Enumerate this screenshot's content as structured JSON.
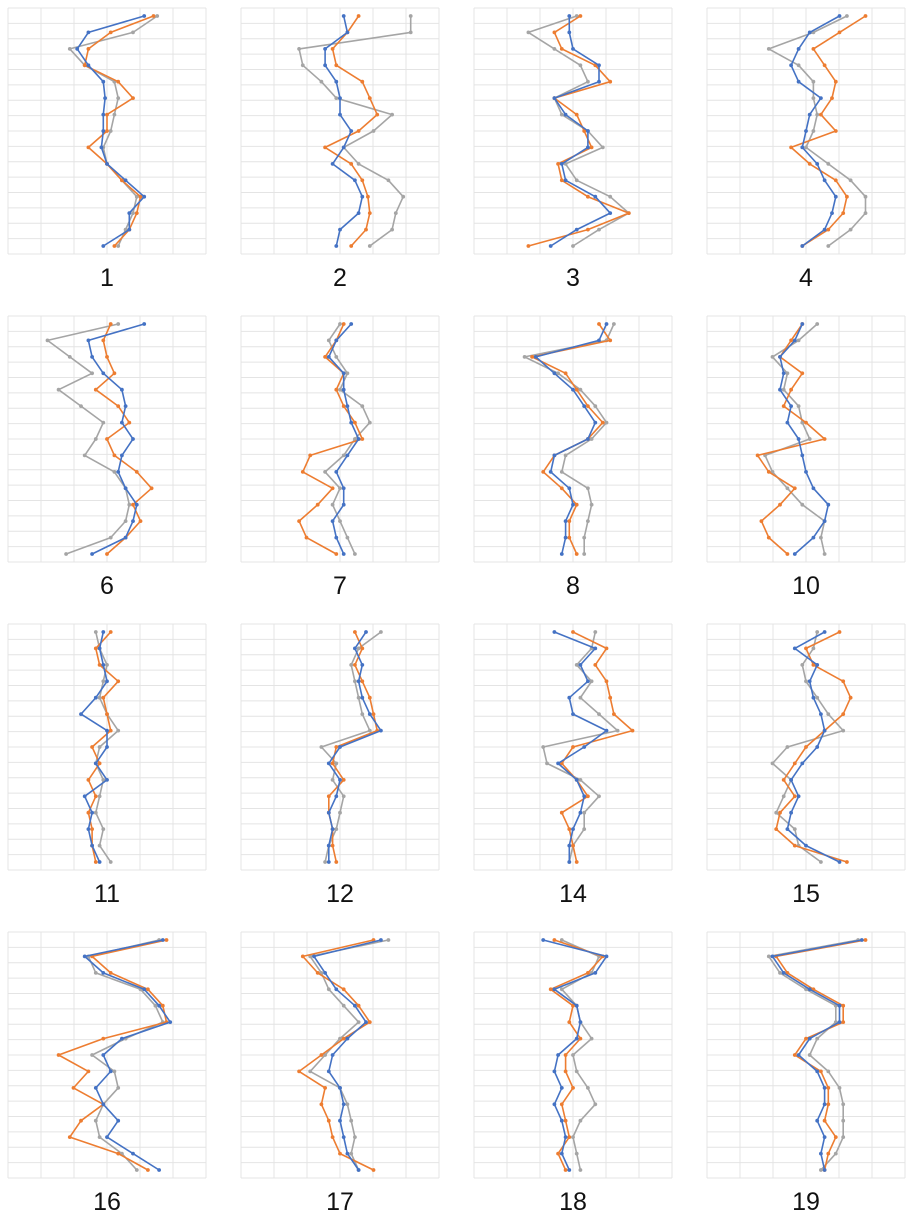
{
  "colors": {
    "blue": "#4472c4",
    "orange": "#ed7d31",
    "gray": "#a5a5a5",
    "grid": "#e4e4e4"
  },
  "chart_data": [
    {
      "type": "line",
      "label": "1",
      "grid": true,
      "x_ticks": 6,
      "y_ticks": 16,
      "series": [
        {
          "color": "blue",
          "x": [
            0.7,
            0.4,
            0.34,
            0.4,
            0.48,
            0.49,
            0.48,
            0.48,
            0.47,
            0.5,
            0.6,
            0.7,
            0.62,
            0.62,
            0.48
          ]
        },
        {
          "color": "orange",
          "x": [
            0.75,
            0.52,
            0.4,
            0.38,
            0.56,
            0.64,
            0.5,
            0.5,
            0.4,
            0.5,
            0.58,
            0.68,
            0.66,
            0.62,
            0.54
          ]
        },
        {
          "color": "gray",
          "x": [
            0.77,
            0.64,
            0.3,
            0.38,
            0.54,
            0.56,
            0.54,
            0.52,
            0.48,
            0.5,
            0.58,
            0.66,
            0.64,
            0.6,
            0.56
          ]
        }
      ]
    },
    {
      "type": "line",
      "label": "2",
      "grid": true,
      "x_ticks": 6,
      "y_ticks": 16,
      "series": [
        {
          "color": "blue",
          "x": [
            0.52,
            0.54,
            0.42,
            0.42,
            0.48,
            0.5,
            0.5,
            0.56,
            0.52,
            0.46,
            0.58,
            0.62,
            0.6,
            0.5,
            0.48
          ]
        },
        {
          "color": "orange",
          "x": [
            0.6,
            0.54,
            0.46,
            0.48,
            0.62,
            0.66,
            0.7,
            0.6,
            0.42,
            0.56,
            0.62,
            0.65,
            0.66,
            0.64,
            0.56
          ]
        },
        {
          "color": "gray",
          "x": [
            0.88,
            0.88,
            0.28,
            0.3,
            0.4,
            0.48,
            0.78,
            0.68,
            0.52,
            0.6,
            0.76,
            0.84,
            0.8,
            0.78,
            0.66
          ]
        }
      ]
    },
    {
      "type": "line",
      "label": "3",
      "grid": true,
      "x_ticks": 6,
      "y_ticks": 16,
      "series": [
        {
          "color": "blue",
          "x": [
            0.48,
            0.48,
            0.5,
            0.64,
            0.64,
            0.4,
            0.46,
            0.58,
            0.58,
            0.44,
            0.46,
            0.62,
            0.7,
            0.52,
            0.38
          ]
        },
        {
          "color": "orange",
          "x": [
            0.54,
            0.4,
            0.44,
            0.62,
            0.7,
            0.4,
            0.52,
            0.56,
            0.6,
            0.42,
            0.44,
            0.58,
            0.8,
            0.58,
            0.26
          ]
        },
        {
          "color": "gray",
          "x": [
            0.52,
            0.26,
            0.4,
            0.54,
            0.58,
            0.4,
            0.44,
            0.58,
            0.66,
            0.46,
            0.52,
            0.7,
            0.8,
            0.64,
            0.5
          ]
        }
      ]
    },
    {
      "type": "line",
      "label": "4",
      "grid": true,
      "x_ticks": 6,
      "y_ticks": 16,
      "series": [
        {
          "color": "blue",
          "x": [
            0.68,
            0.52,
            0.46,
            0.42,
            0.46,
            0.58,
            0.52,
            0.5,
            0.48,
            0.56,
            0.6,
            0.66,
            0.64,
            0.6,
            0.48
          ]
        },
        {
          "color": "orange",
          "x": [
            0.82,
            0.68,
            0.54,
            0.6,
            0.66,
            0.64,
            0.58,
            0.66,
            0.42,
            0.52,
            0.66,
            0.72,
            0.7,
            0.62,
            0.48
          ]
        },
        {
          "color": "gray",
          "x": [
            0.72,
            0.54,
            0.3,
            0.46,
            0.54,
            0.54,
            0.56,
            0.54,
            0.5,
            0.62,
            0.74,
            0.82,
            0.82,
            0.74,
            0.62
          ]
        }
      ]
    },
    {
      "type": "line",
      "label": "6",
      "grid": true,
      "x_ticks": 6,
      "y_ticks": 16,
      "series": [
        {
          "color": "blue",
          "x": [
            0.7,
            0.4,
            0.42,
            0.48,
            0.58,
            0.6,
            0.58,
            0.64,
            0.58,
            0.56,
            0.6,
            0.66,
            0.64,
            0.6,
            0.42
          ]
        },
        {
          "color": "orange",
          "x": [
            0.52,
            0.48,
            0.5,
            0.54,
            0.44,
            0.56,
            0.62,
            0.5,
            0.54,
            0.66,
            0.74,
            0.64,
            0.68,
            0.6,
            0.5
          ]
        },
        {
          "color": "gray",
          "x": [
            0.56,
            0.18,
            0.3,
            0.42,
            0.24,
            0.36,
            0.48,
            0.44,
            0.38,
            0.54,
            0.6,
            0.62,
            0.6,
            0.52,
            0.28
          ]
        }
      ]
    },
    {
      "type": "line",
      "label": "7",
      "grid": true,
      "x_ticks": 6,
      "y_ticks": 16,
      "series": [
        {
          "color": "blue",
          "x": [
            0.56,
            0.48,
            0.44,
            0.52,
            0.52,
            0.54,
            0.56,
            0.6,
            0.54,
            0.48,
            0.52,
            0.52,
            0.46,
            0.48,
            0.52
          ]
        },
        {
          "color": "orange",
          "x": [
            0.52,
            0.48,
            0.42,
            0.52,
            0.48,
            0.52,
            0.58,
            0.62,
            0.34,
            0.3,
            0.46,
            0.38,
            0.28,
            0.32,
            0.48
          ]
        },
        {
          "color": "gray",
          "x": [
            0.5,
            0.44,
            0.48,
            0.54,
            0.5,
            0.62,
            0.66,
            0.58,
            0.52,
            0.42,
            0.5,
            0.46,
            0.5,
            0.54,
            0.58
          ]
        }
      ]
    },
    {
      "type": "line",
      "label": "8",
      "grid": true,
      "x_ticks": 6,
      "y_ticks": 16,
      "series": [
        {
          "color": "blue",
          "x": [
            0.68,
            0.64,
            0.3,
            0.4,
            0.5,
            0.56,
            0.62,
            0.58,
            0.4,
            0.38,
            0.48,
            0.5,
            0.46,
            0.46,
            0.44
          ]
        },
        {
          "color": "orange",
          "x": [
            0.64,
            0.7,
            0.28,
            0.46,
            0.52,
            0.58,
            0.66,
            0.58,
            0.4,
            0.34,
            0.44,
            0.52,
            0.48,
            0.48,
            0.52
          ]
        },
        {
          "color": "gray",
          "x": [
            0.72,
            0.68,
            0.24,
            0.42,
            0.54,
            0.62,
            0.68,
            0.6,
            0.46,
            0.44,
            0.58,
            0.6,
            0.58,
            0.56,
            0.56
          ]
        }
      ]
    },
    {
      "type": "line",
      "label": "10",
      "grid": true,
      "x_ticks": 6,
      "y_ticks": 16,
      "series": [
        {
          "color": "blue",
          "x": [
            0.48,
            0.44,
            0.36,
            0.38,
            0.36,
            0.42,
            0.4,
            0.46,
            0.48,
            0.5,
            0.54,
            0.62,
            0.6,
            0.54,
            0.44
          ]
        },
        {
          "color": "orange",
          "x": [
            0.48,
            0.42,
            0.36,
            0.48,
            0.42,
            0.38,
            0.5,
            0.6,
            0.24,
            0.3,
            0.44,
            0.36,
            0.26,
            0.3,
            0.4
          ]
        },
        {
          "color": "gray",
          "x": [
            0.56,
            0.46,
            0.32,
            0.4,
            0.38,
            0.46,
            0.48,
            0.52,
            0.28,
            0.32,
            0.4,
            0.48,
            0.6,
            0.58,
            0.6
          ]
        }
      ]
    },
    {
      "type": "line",
      "label": "11",
      "grid": true,
      "x_ticks": 6,
      "y_ticks": 16,
      "series": [
        {
          "color": "blue",
          "x": [
            0.48,
            0.46,
            0.48,
            0.5,
            0.44,
            0.36,
            0.5,
            0.5,
            0.44,
            0.5,
            0.38,
            0.42,
            0.4,
            0.42,
            0.46
          ]
        },
        {
          "color": "orange",
          "x": [
            0.52,
            0.44,
            0.46,
            0.56,
            0.48,
            0.5,
            0.52,
            0.42,
            0.46,
            0.4,
            0.44,
            0.4,
            0.42,
            0.42,
            0.44
          ]
        },
        {
          "color": "gray",
          "x": [
            0.44,
            0.46,
            0.5,
            0.48,
            0.46,
            0.5,
            0.56,
            0.46,
            0.44,
            0.48,
            0.46,
            0.44,
            0.48,
            0.46,
            0.52
          ]
        }
      ]
    },
    {
      "type": "line",
      "label": "12",
      "grid": true,
      "x_ticks": 6,
      "y_ticks": 16,
      "series": [
        {
          "color": "blue",
          "x": [
            0.64,
            0.58,
            0.62,
            0.6,
            0.62,
            0.66,
            0.72,
            0.5,
            0.44,
            0.5,
            0.48,
            0.44,
            0.46,
            0.44,
            0.44
          ]
        },
        {
          "color": "orange",
          "x": [
            0.58,
            0.62,
            0.58,
            0.62,
            0.66,
            0.68,
            0.7,
            0.48,
            0.46,
            0.52,
            0.44,
            0.44,
            0.46,
            0.46,
            0.48
          ]
        },
        {
          "color": "gray",
          "x": [
            0.72,
            0.6,
            0.56,
            0.58,
            0.6,
            0.62,
            0.66,
            0.4,
            0.48,
            0.46,
            0.52,
            0.5,
            0.48,
            0.44,
            0.42
          ]
        }
      ]
    },
    {
      "type": "line",
      "label": "14",
      "grid": true,
      "x_ticks": 6,
      "y_ticks": 16,
      "series": [
        {
          "color": "blue",
          "x": [
            0.4,
            0.62,
            0.54,
            0.58,
            0.48,
            0.5,
            0.68,
            0.56,
            0.42,
            0.52,
            0.56,
            0.54,
            0.5,
            0.48,
            0.48
          ]
        },
        {
          "color": "orange",
          "x": [
            0.5,
            0.68,
            0.62,
            0.68,
            0.7,
            0.72,
            0.82,
            0.5,
            0.44,
            0.52,
            0.58,
            0.44,
            0.48,
            0.5,
            0.52
          ]
        },
        {
          "color": "gray",
          "x": [
            0.62,
            0.6,
            0.52,
            0.6,
            0.54,
            0.64,
            0.74,
            0.34,
            0.36,
            0.54,
            0.64,
            0.56,
            0.56,
            0.5,
            0.48
          ]
        }
      ]
    },
    {
      "type": "line",
      "label": "15",
      "grid": true,
      "x_ticks": 6,
      "y_ticks": 16,
      "series": [
        {
          "color": "blue",
          "x": [
            0.6,
            0.44,
            0.56,
            0.52,
            0.54,
            0.58,
            0.6,
            0.56,
            0.48,
            0.42,
            0.46,
            0.42,
            0.4,
            0.5,
            0.68
          ]
        },
        {
          "color": "orange",
          "x": [
            0.68,
            0.5,
            0.54,
            0.7,
            0.74,
            0.7,
            0.6,
            0.5,
            0.44,
            0.38,
            0.44,
            0.36,
            0.34,
            0.44,
            0.72
          ]
        },
        {
          "color": "gray",
          "x": [
            0.56,
            0.54,
            0.48,
            0.5,
            0.56,
            0.62,
            0.7,
            0.4,
            0.32,
            0.42,
            0.38,
            0.34,
            0.44,
            0.46,
            0.58
          ]
        }
      ]
    },
    {
      "type": "line",
      "label": "16",
      "grid": true,
      "x_ticks": 6,
      "y_ticks": 16,
      "series": [
        {
          "color": "blue",
          "x": [
            0.8,
            0.38,
            0.48,
            0.7,
            0.78,
            0.84,
            0.58,
            0.48,
            0.52,
            0.44,
            0.48,
            0.56,
            0.5,
            0.64,
            0.78
          ]
        },
        {
          "color": "orange",
          "x": [
            0.82,
            0.42,
            0.52,
            0.72,
            0.8,
            0.82,
            0.48,
            0.24,
            0.4,
            0.32,
            0.48,
            0.36,
            0.3,
            0.56,
            0.72
          ]
        },
        {
          "color": "gray",
          "x": [
            0.78,
            0.4,
            0.44,
            0.68,
            0.76,
            0.8,
            0.6,
            0.42,
            0.54,
            0.56,
            0.48,
            0.44,
            0.46,
            0.58,
            0.66
          ]
        }
      ]
    },
    {
      "type": "line",
      "label": "17",
      "grid": true,
      "x_ticks": 6,
      "y_ticks": 16,
      "series": [
        {
          "color": "blue",
          "x": [
            0.72,
            0.36,
            0.42,
            0.48,
            0.58,
            0.64,
            0.54,
            0.46,
            0.44,
            0.5,
            0.52,
            0.5,
            0.52,
            0.54,
            0.6
          ]
        },
        {
          "color": "orange",
          "x": [
            0.68,
            0.3,
            0.38,
            0.52,
            0.6,
            0.66,
            0.52,
            0.4,
            0.28,
            0.42,
            0.4,
            0.44,
            0.46,
            0.5,
            0.68
          ]
        },
        {
          "color": "gray",
          "x": [
            0.76,
            0.34,
            0.4,
            0.44,
            0.52,
            0.6,
            0.5,
            0.42,
            0.34,
            0.5,
            0.54,
            0.56,
            0.58,
            0.56,
            0.6
          ]
        }
      ]
    },
    {
      "type": "line",
      "label": "18",
      "grid": true,
      "x_ticks": 6,
      "y_ticks": 16,
      "series": [
        {
          "color": "blue",
          "x": [
            0.34,
            0.68,
            0.62,
            0.4,
            0.52,
            0.54,
            0.52,
            0.42,
            0.4,
            0.44,
            0.4,
            0.44,
            0.46,
            0.44,
            0.48
          ]
        },
        {
          "color": "orange",
          "x": [
            0.4,
            0.66,
            0.58,
            0.38,
            0.5,
            0.48,
            0.54,
            0.46,
            0.46,
            0.5,
            0.44,
            0.46,
            0.48,
            0.42,
            0.46
          ]
        },
        {
          "color": "gray",
          "x": [
            0.44,
            0.64,
            0.6,
            0.44,
            0.52,
            0.54,
            0.6,
            0.5,
            0.52,
            0.58,
            0.62,
            0.54,
            0.5,
            0.52,
            0.54
          ]
        }
      ]
    },
    {
      "type": "line",
      "label": "19",
      "grid": true,
      "x_ticks": 6,
      "y_ticks": 16,
      "series": [
        {
          "color": "blue",
          "x": [
            0.8,
            0.32,
            0.38,
            0.52,
            0.68,
            0.68,
            0.52,
            0.46,
            0.56,
            0.6,
            0.6,
            0.56,
            0.6,
            0.58,
            0.6
          ]
        },
        {
          "color": "orange",
          "x": [
            0.82,
            0.34,
            0.4,
            0.54,
            0.7,
            0.7,
            0.5,
            0.44,
            0.58,
            0.62,
            0.62,
            0.6,
            0.66,
            0.62,
            0.6
          ]
        },
        {
          "color": "gray",
          "x": [
            0.78,
            0.3,
            0.36,
            0.5,
            0.66,
            0.66,
            0.56,
            0.52,
            0.62,
            0.68,
            0.7,
            0.7,
            0.7,
            0.66,
            0.58
          ]
        }
      ]
    }
  ]
}
